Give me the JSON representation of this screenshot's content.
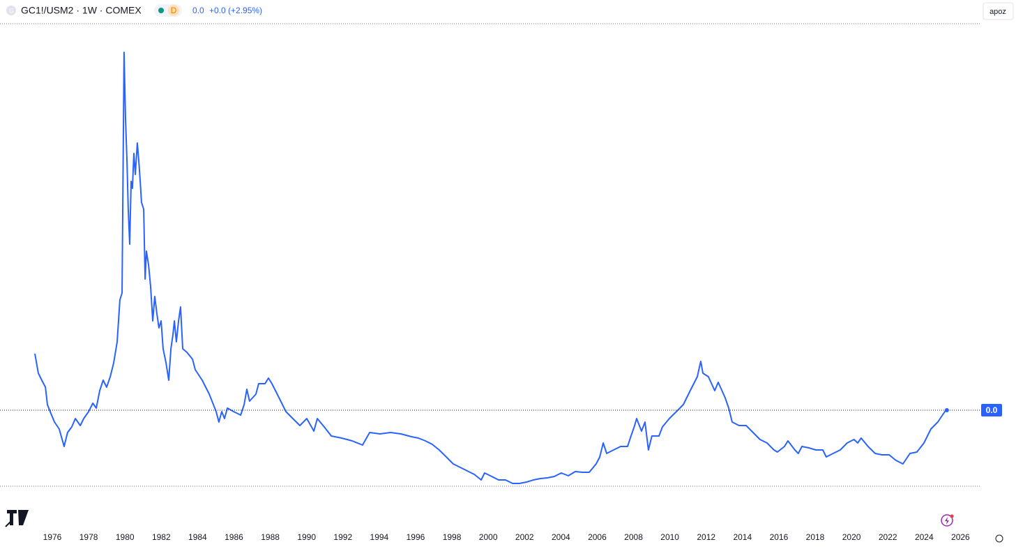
{
  "header": {
    "symbol": "GC1!/USM2 · 1W · COMEX",
    "badge": "D",
    "value": "0.0",
    "change": "+0.0 (+2.95%)",
    "button": "apoz"
  },
  "chart_data": {
    "type": "line",
    "color": "#2962ff",
    "price_label": "0.0",
    "x": [
      1975.04,
      1975.23,
      1975.42,
      1975.62,
      1975.73,
      1975.88,
      1976.12,
      1976.38,
      1976.65,
      1976.84,
      1977.07,
      1977.27,
      1977.54,
      1977.73,
      1978.0,
      1978.23,
      1978.42,
      1978.61,
      1978.8,
      1978.99,
      1979.19,
      1979.38,
      1979.57,
      1979.72,
      1979.84,
      1979.95,
      1980.03,
      1980.11,
      1980.18,
      1980.26,
      1980.34,
      1980.41,
      1980.49,
      1980.57,
      1980.68,
      1980.76,
      1980.84,
      1980.91,
      1981.03,
      1981.11,
      1981.18,
      1981.3,
      1981.41,
      1981.53,
      1981.64,
      1981.76,
      1981.87,
      1981.99,
      1982.1,
      1982.26,
      1982.41,
      1982.53,
      1982.64,
      1982.72,
      1982.83,
      1982.95,
      1983.06,
      1983.18,
      1983.41,
      1983.72,
      1983.87,
      1984.25,
      1984.64,
      1985.02,
      1985.17,
      1985.33,
      1985.48,
      1985.64,
      1985.98,
      1986.37,
      1986.56,
      1986.71,
      1986.86,
      1987.21,
      1987.36,
      1987.71,
      1987.9,
      1988.09,
      1988.48,
      1988.86,
      1989.24,
      1989.63,
      1990.01,
      1990.4,
      1990.59,
      1990.97,
      1991.36,
      1991.93,
      1992.51,
      1993.08,
      1993.47,
      1994.04,
      1994.62,
      1995.19,
      1995.77,
      1996.15,
      1996.54,
      1996.92,
      1997.3,
      1997.69,
      1998.07,
      1998.46,
      1998.84,
      1999.23,
      1999.61,
      1999.8,
      2000.19,
      2000.57,
      2000.95,
      2001.34,
      2001.72,
      2002.11,
      2002.49,
      2002.87,
      2003.26,
      2003.64,
      2004.02,
      2004.41,
      2004.79,
      2005.18,
      2005.56,
      2005.94,
      2006.14,
      2006.33,
      2006.52,
      2006.9,
      2007.29,
      2007.67,
      2007.86,
      2008.06,
      2008.17,
      2008.32,
      2008.44,
      2008.63,
      2008.82,
      2009.01,
      2009.4,
      2009.59,
      2009.97,
      2010.36,
      2010.74,
      2011.12,
      2011.51,
      2011.7,
      2011.82,
      2012.12,
      2012.47,
      2012.66,
      2013.04,
      2013.24,
      2013.43,
      2013.81,
      2014.2,
      2014.58,
      2014.96,
      2015.35,
      2015.73,
      2015.92,
      2016.31,
      2016.5,
      2016.88,
      2017.07,
      2017.27,
      2017.65,
      2018.03,
      2018.42,
      2018.61,
      2018.99,
      2019.38,
      2019.76,
      2020.14,
      2020.34,
      2020.53,
      2020.91,
      2021.3,
      2021.68,
      2022.07,
      2022.45,
      2022.83,
      2023.22,
      2023.6,
      2023.99,
      2024.37,
      2024.75,
      2025.14,
      2025.25
    ],
    "values": [
      0.0772,
      0.066,
      0.062,
      0.058,
      0.048,
      0.044,
      0.038,
      0.034,
      0.024,
      0.032,
      0.0352,
      0.04,
      0.036,
      0.04,
      0.044,
      0.0488,
      0.046,
      0.056,
      0.062,
      0.058,
      0.064,
      0.072,
      0.084,
      0.108,
      0.112,
      0.25,
      0.212,
      0.188,
      0.16,
      0.14,
      0.176,
      0.172,
      0.192,
      0.18,
      0.198,
      0.188,
      0.176,
      0.164,
      0.16,
      0.12,
      0.136,
      0.128,
      0.116,
      0.096,
      0.11,
      0.1,
      0.092,
      0.096,
      0.08,
      0.072,
      0.062,
      0.08,
      0.088,
      0.096,
      0.084,
      0.096,
      0.104,
      0.08,
      0.078,
      0.074,
      0.068,
      0.062,
      0.054,
      0.044,
      0.038,
      0.044,
      0.04,
      0.046,
      0.044,
      0.042,
      0.048,
      0.0568,
      0.05,
      0.054,
      0.06,
      0.06,
      0.0632,
      0.06,
      0.052,
      0.044,
      0.04,
      0.036,
      0.04,
      0.0328,
      0.04,
      0.0352,
      0.03,
      0.0288,
      0.0272,
      0.0248,
      0.032,
      0.0312,
      0.032,
      0.0312,
      0.0296,
      0.0288,
      0.0272,
      0.0252,
      0.022,
      0.018,
      0.014,
      0.012,
      0.01,
      0.008,
      0.0048,
      0.0088,
      0.0068,
      0.0048,
      0.0048,
      0.0028,
      0.0028,
      0.0036,
      0.0048,
      0.0056,
      0.006,
      0.0068,
      0.0088,
      0.0072,
      0.0096,
      0.0092,
      0.0092,
      0.014,
      0.018,
      0.026,
      0.02,
      0.022,
      0.024,
      0.024,
      0.03,
      0.036,
      0.04,
      0.036,
      0.0328,
      0.038,
      0.022,
      0.03,
      0.03,
      0.0352,
      0.04,
      0.044,
      0.048,
      0.056,
      0.064,
      0.0728,
      0.066,
      0.064,
      0.056,
      0.0608,
      0.052,
      0.046,
      0.038,
      0.036,
      0.036,
      0.032,
      0.028,
      0.026,
      0.022,
      0.0208,
      0.024,
      0.0272,
      0.022,
      0.02,
      0.024,
      0.0232,
      0.022,
      0.022,
      0.018,
      0.02,
      0.022,
      0.026,
      0.028,
      0.026,
      0.0288,
      0.024,
      0.02,
      0.0192,
      0.0192,
      0.016,
      0.014,
      0.02,
      0.0208,
      0.026,
      0.034,
      0.038,
      0.044,
      0.0448
    ],
    "xlim": [
      1973.12,
      2027.06
    ],
    "ylim": [
      0,
      0.266
    ],
    "xticks": [
      1976,
      1978,
      1980,
      1982,
      1984,
      1986,
      1988,
      1990,
      1992,
      1994,
      1996,
      1998,
      2000,
      2002,
      2004,
      2006,
      2008,
      2010,
      2012,
      2014,
      2016,
      2018,
      2020,
      2022,
      2024,
      2026
    ]
  }
}
